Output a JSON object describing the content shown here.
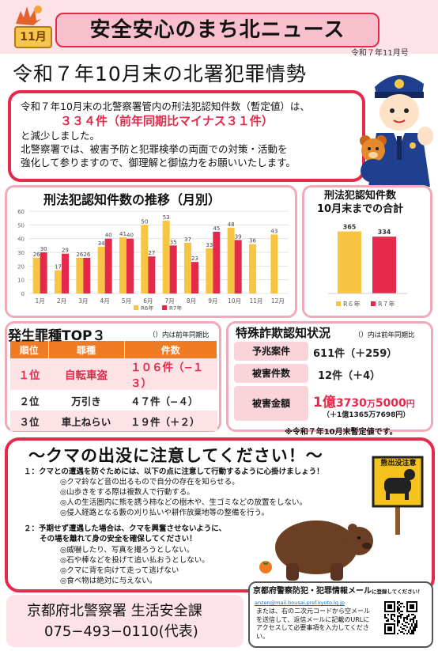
{
  "header": {
    "badge": "11月",
    "title": "安全安心のまち北ニュース",
    "issue": "令和７年11月号"
  },
  "headline": "令和７年10月末の北署犯罪情勢",
  "intro": {
    "line1": "令和７年10月末の北警察署管内の刑法犯認知件数（暫定値）は、",
    "emphasis": "３３４件（前年同期比マイナス３１件）",
    "line2": "と減少しました。",
    "line3": "北警察署では、被害予防と犯罪検挙の両面での対策・活動を",
    "line4": "強化して参りますので、御理解と御協力をお願いいたします。"
  },
  "chart_data": [
    {
      "type": "bar",
      "title": "刑法犯認知件数の推移（月別）",
      "categories": [
        "1月",
        "2月",
        "3月",
        "4月",
        "5月",
        "6月",
        "7月",
        "8月",
        "9月",
        "10月",
        "11月",
        "12月"
      ],
      "ylim": [
        0,
        60
      ],
      "yticks": [
        0,
        10,
        20,
        30,
        40,
        50,
        60
      ],
      "series": [
        {
          "name": "R6年",
          "color": "#f7c542",
          "values": [
            26,
            17,
            26,
            34,
            41,
            50,
            53,
            37,
            33,
            48,
            36,
            43
          ]
        },
        {
          "name": "R7年",
          "color": "#e5294a",
          "values": [
            30,
            29,
            26,
            40,
            40,
            27,
            35,
            23,
            45,
            39,
            null,
            null
          ]
        }
      ],
      "legend": "bottom"
    },
    {
      "type": "bar",
      "title": "刑法犯認知件数\n10月末までの合計",
      "categories": [
        "R６年",
        "R７年"
      ],
      "values": [
        365,
        334
      ],
      "colors": [
        "#f7c542",
        "#e5294a"
      ],
      "legend": "bottom"
    }
  ],
  "top3": {
    "title": "発生罪種TOP３",
    "note": "（）内は前年同期比",
    "headers": [
      "順位",
      "罪種",
      "件数"
    ],
    "rows": [
      {
        "rank": "１位",
        "type": "自転車盗",
        "count": "１０６件（−１３）"
      },
      {
        "rank": "２位",
        "type": "万引き",
        "count": "４７件（−４）"
      },
      {
        "rank": "３位",
        "type": "車上ねらい",
        "count": "１９件（＋２）"
      }
    ]
  },
  "fraud": {
    "title": "特殊詐欺認知状況",
    "note": "（）内は前年同期比",
    "rows": [
      {
        "label": "予兆案件",
        "value": "611件（＋259）"
      },
      {
        "label": "被害件数",
        "value": "12件（＋4）"
      },
      {
        "label": "被害金額",
        "value_a": "1億",
        "value_b": "3730",
        "value_c": "万",
        "value_d": "5000",
        "value_e": "円",
        "sub": "（＋1億1365万7698円）"
      }
    ],
    "footnote": "※令和７年10月末暫定値です。"
  },
  "bear": {
    "title": "～クマの出没に注意してください！～",
    "sign": "熊出没注意",
    "s1_head1": "１：クマとの遭遇を防ぐためには、以下の点に注意して行動するように心掛けましょう！",
    "s1_items": [
      "◎クマ鈴など音の出るもので自分の存在を知らせる。",
      "◎山歩きをする際は複数人で行動する。",
      "◎人の生活圏内に熊を誘う柿などの樹木や、生ゴミなどの放置をしない。",
      "◎侵入経路となる藪の刈り払いや耕作放棄地等の整備を行う。"
    ],
    "s2_head1": "２：予期せず遭遇した場合は、クマを興奮させないように、",
    "s2_head2": "その場を離れて身の安全を確保してください！",
    "s2_items": [
      "◎威嚇したり、写真を撮ろうとしない。",
      "◎石や棒などを投げて追い払おうとしない。",
      "◎クマに背を向けて走って逃げない",
      "◎食べ物は絶対に与えない。"
    ]
  },
  "contact": {
    "name": "京都府北警察署 生活安全課",
    "phone": "075−493−0110(代表)"
  },
  "mail": {
    "title": "京都府警察防犯・犯罪情報メール",
    "title_suffix": "に登録してください！",
    "address": "anzen@mail.bousai.pref.kyoto.lg.jp",
    "desc": "または、右の二次元コードから空メールを送信して、返信メールに記載のURLにアクセスして必要事項を入力してください。"
  }
}
